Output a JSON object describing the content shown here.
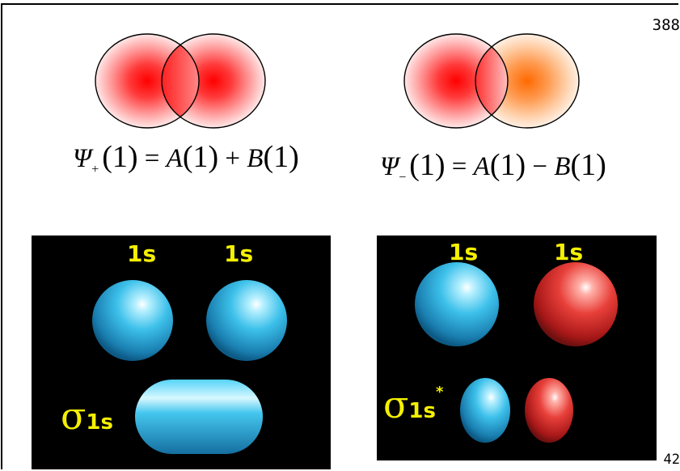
{
  "page_number_top": "388",
  "page_number_bottom": "42",
  "equations": {
    "plus": {
      "psi": "Ψ",
      "sub": "+",
      "arg": "(1)",
      "eq": "=",
      "a": "A",
      "a_arg": "(1)",
      "op": "+",
      "b": "B",
      "b_arg": "(1)"
    },
    "minus": {
      "psi": "Ψ",
      "sub": "−",
      "arg": "(1)",
      "eq": "=",
      "a": "A",
      "a_arg": "(1)",
      "op": "−",
      "b": "B",
      "b_arg": "(1)"
    }
  },
  "panels": {
    "bonding": {
      "label_left": "1s",
      "label_right": "1s",
      "sigma": "σ",
      "sigma_sub": "1s"
    },
    "antibonding": {
      "label_left": "1s",
      "label_right": "1s",
      "sigma": "σ",
      "sigma_sub": "1s",
      "star": "*"
    }
  },
  "colors": {
    "label_yellow": "#f4f000",
    "orbital_blue": "#3cc0ea",
    "orbital_red": "#e8403a",
    "density_red": "#ff0000",
    "density_orange": "#ff6a00"
  }
}
